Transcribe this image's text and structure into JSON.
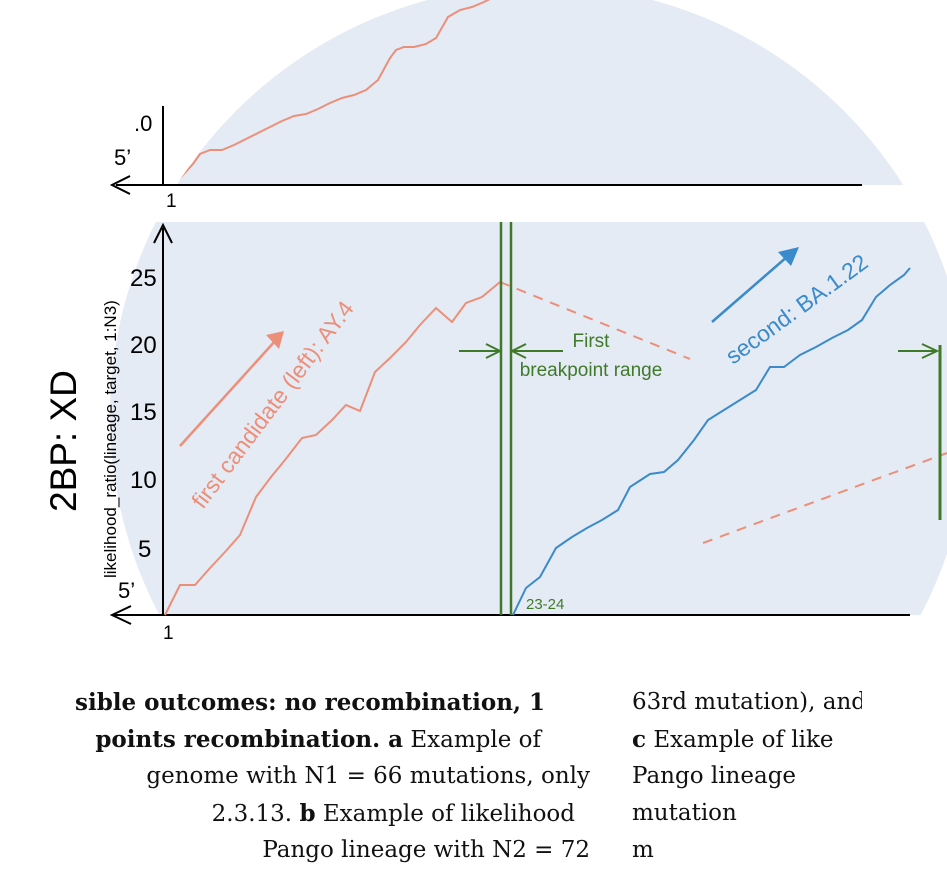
{
  "panel_top": {
    "y_tick_partial": ".0",
    "start_label": "5’",
    "x_start_tick": "1"
  },
  "panel_main": {
    "side_label": "2BP: XD",
    "y_axis_label": "likelihood_ratio(lineage, target, 1:N3)",
    "y_ticks": [
      "25",
      "20",
      "15",
      "10",
      "5"
    ],
    "start_label": "5’",
    "x_start_tick": "1",
    "first_candidate_label": "first candidate (left): AY.4",
    "second_candidate_label": "second: BA.1.22",
    "breakpoint_label_line1": "First",
    "breakpoint_label_line2": "breakpoint range",
    "breakpoint_tick": "23-24",
    "colors": {
      "background": "#e5ebf5",
      "first": "#ec8f79",
      "second": "#3a8bcb",
      "breakpoint": "#3f7a2a"
    }
  },
  "caption": {
    "left_lines": [
      [
        {
          "t": "sible outcomes: no recombination, 1",
          "b": true
        }
      ],
      [
        {
          "t": "points recombination. ",
          "b": true
        },
        {
          "t": "a",
          "b": true
        },
        {
          "t": " Example of",
          "b": false
        }
      ],
      [
        {
          "t": "genome with N1 = 66 mutations, only",
          "b": false
        }
      ],
      [
        {
          "t": "2.3.13. ",
          "b": false
        },
        {
          "t": "b",
          "b": true
        },
        {
          "t": " Example of likelihood",
          "b": false
        }
      ],
      [
        {
          "t": "Pango lineage with N2 = 72",
          "b": false
        }
      ]
    ],
    "right_lines": [
      [
        {
          "t": "63rd mutation), and",
          "b": false
        }
      ],
      [
        {
          "t": "c",
          "b": true
        },
        {
          "t": " Example of like",
          "b": false
        }
      ],
      [
        {
          "t": "Pango lineage",
          "b": false
        }
      ],
      [
        {
          "t": "mutation",
          "b": false
        }
      ],
      [
        {
          "t": "m",
          "b": false
        }
      ]
    ]
  }
}
